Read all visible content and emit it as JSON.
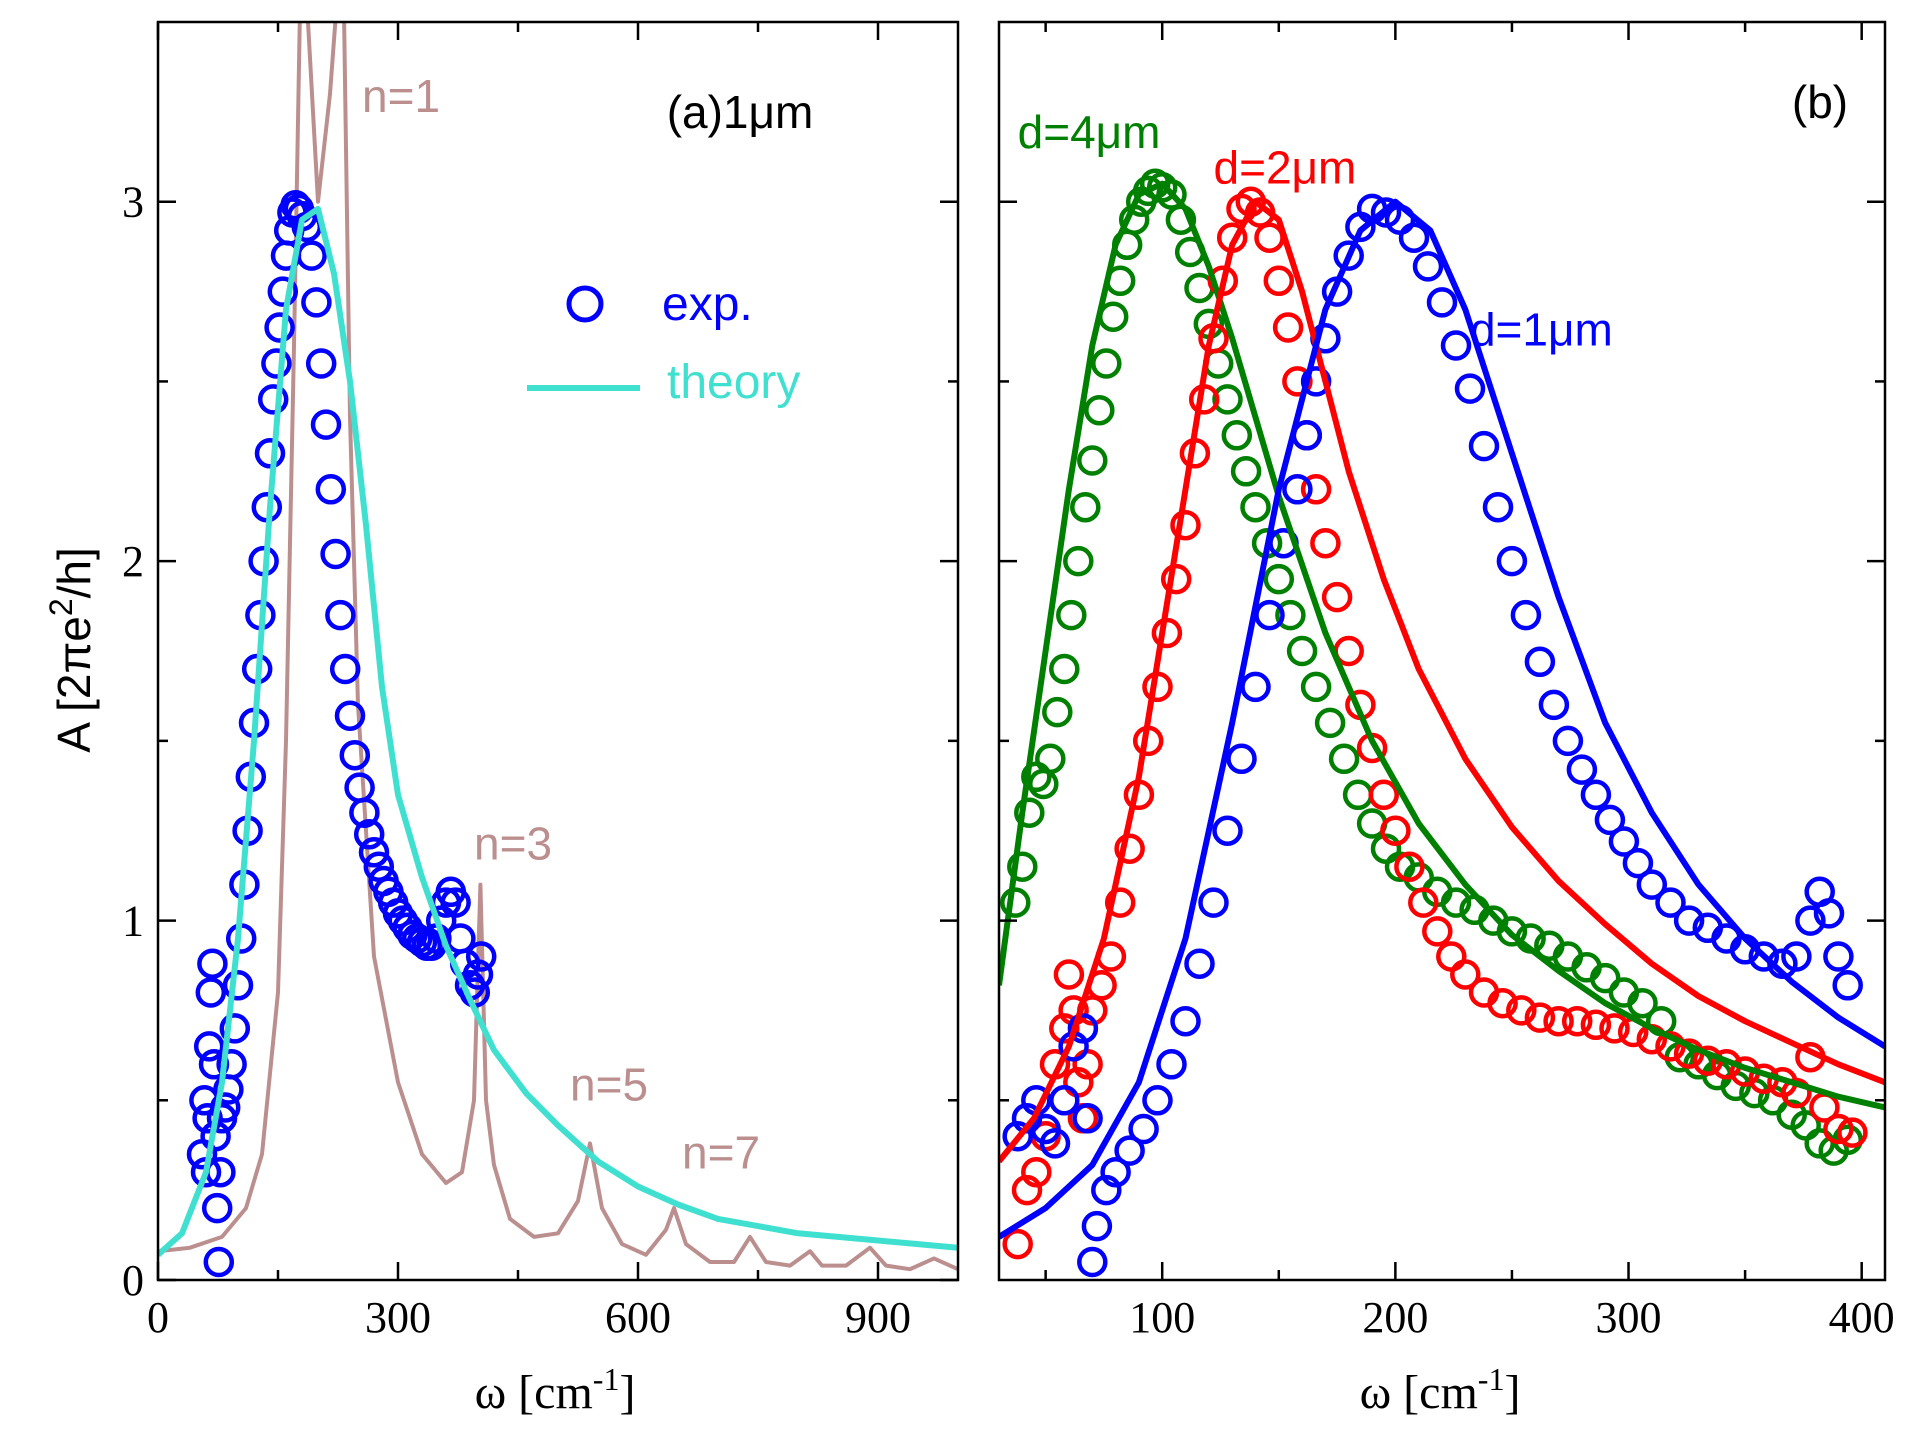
{
  "colors": {
    "exp": "#0000ff",
    "theory": "#40e0d0",
    "single_mode": "#bc8f8f",
    "d4": "#008000",
    "d2": "#ff0000",
    "d1": "#0000ff"
  },
  "chart_data": [
    {
      "id": "panel-a",
      "type": "line+scatter",
      "panel_label": "(a)1μm",
      "xlabel_symbol": "ω",
      "xlabel_unit": "[cm",
      "xlabel_sup": "-1",
      "xlabel_close": "]",
      "ylabel_main": "A [2πe",
      "ylabel_sup": "2",
      "ylabel_end": "/h]",
      "xlim": [
        0,
        1000
      ],
      "ylim": [
        0,
        3.5
      ],
      "xticks": [
        0,
        300,
        600,
        900
      ],
      "yticks": [
        0,
        1,
        2,
        3
      ],
      "xtick_labels": [
        "0",
        "300",
        "600",
        "900"
      ],
      "ytick_labels": [
        "0",
        "1",
        "2",
        "3"
      ],
      "legend": {
        "exp_label": "exp.",
        "theory_label": "theory",
        "position": "upper-right"
      },
      "mode_labels": [
        {
          "text": "n=1",
          "x": 255,
          "y": 3.25
        },
        {
          "text": "n=3",
          "x": 395,
          "y": 1.17
        },
        {
          "text": "n=5",
          "x": 515,
          "y": 0.5
        },
        {
          "text": "n=7",
          "x": 655,
          "y": 0.31
        }
      ],
      "series": [
        {
          "name": "single-mode",
          "style": "line",
          "x": [
            0,
            40,
            80,
            110,
            130,
            150,
            160,
            170,
            178,
            185,
            200,
            215,
            225,
            232,
            240,
            250,
            270,
            300,
            330,
            360,
            380,
            395,
            403,
            410,
            420,
            440,
            470,
            500,
            525,
            540,
            555,
            580,
            610,
            635,
            645,
            660,
            690,
            720,
            740,
            760,
            790,
            815,
            830,
            860,
            890,
            910,
            940,
            970,
            1000
          ],
          "y": [
            0.08,
            0.09,
            0.12,
            0.2,
            0.35,
            0.8,
            1.5,
            2.6,
            3.6,
            3.6,
            3.0,
            3.3,
            3.6,
            3.6,
            2.4,
            1.6,
            0.9,
            0.55,
            0.35,
            0.27,
            0.3,
            0.5,
            1.1,
            0.5,
            0.32,
            0.17,
            0.12,
            0.13,
            0.22,
            0.38,
            0.2,
            0.1,
            0.07,
            0.14,
            0.2,
            0.1,
            0.05,
            0.05,
            0.12,
            0.05,
            0.04,
            0.08,
            0.04,
            0.04,
            0.09,
            0.04,
            0.03,
            0.06,
            0.03
          ]
        },
        {
          "name": "theory",
          "style": "line",
          "x": [
            0,
            30,
            60,
            80,
            100,
            120,
            140,
            160,
            180,
            200,
            220,
            240,
            260,
            280,
            300,
            330,
            360,
            390,
            420,
            460,
            500,
            550,
            600,
            650,
            700,
            750,
            800,
            850,
            900,
            950,
            1000
          ],
          "y": [
            0.07,
            0.13,
            0.3,
            0.55,
            0.95,
            1.5,
            2.15,
            2.7,
            2.95,
            2.98,
            2.8,
            2.5,
            2.1,
            1.65,
            1.35,
            1.12,
            0.93,
            0.78,
            0.64,
            0.52,
            0.43,
            0.33,
            0.26,
            0.21,
            0.17,
            0.15,
            0.13,
            0.12,
            0.11,
            0.1,
            0.09
          ]
        },
        {
          "name": "exp.",
          "style": "markers",
          "x": [
            55,
            58,
            60,
            62,
            64,
            66,
            68,
            70,
            72,
            74,
            76,
            78,
            80,
            84,
            88,
            92,
            96,
            100,
            104,
            108,
            112,
            116,
            120,
            124,
            128,
            132,
            136,
            140,
            144,
            148,
            152,
            156,
            160,
            164,
            168,
            172,
            176,
            180,
            186,
            192,
            198,
            204,
            210,
            216,
            222,
            228,
            234,
            240,
            246,
            252,
            258,
            264,
            270,
            276,
            282,
            288,
            294,
            300,
            306,
            312,
            318,
            324,
            330,
            336,
            342,
            348,
            354,
            360,
            366,
            372,
            378,
            384,
            390,
            396,
            400,
            404
          ],
          "y": [
            0.35,
            0.5,
            0.3,
            0.45,
            0.65,
            0.8,
            0.88,
            0.6,
            0.4,
            0.2,
            0.05,
            0.3,
            0.45,
            0.48,
            0.53,
            0.6,
            0.7,
            0.82,
            0.95,
            1.1,
            1.25,
            1.4,
            1.55,
            1.7,
            1.85,
            2.0,
            2.15,
            2.3,
            2.45,
            2.55,
            2.65,
            2.75,
            2.85,
            2.92,
            2.97,
            2.99,
            2.98,
            2.96,
            2.93,
            2.85,
            2.72,
            2.55,
            2.38,
            2.2,
            2.02,
            1.85,
            1.7,
            1.57,
            1.46,
            1.37,
            1.3,
            1.24,
            1.19,
            1.15,
            1.11,
            1.08,
            1.05,
            1.02,
            1.0,
            0.98,
            0.96,
            0.95,
            0.94,
            0.93,
            0.93,
            0.95,
            1.0,
            1.05,
            1.08,
            1.05,
            0.95,
            0.88,
            0.82,
            0.8,
            0.85,
            0.9
          ]
        }
      ]
    },
    {
      "id": "panel-b",
      "type": "line+scatter",
      "panel_label": "(b)",
      "xlabel_symbol": "ω",
      "xlabel_unit": "[cm",
      "xlabel_sup": "-1",
      "xlabel_close": "]",
      "xlim": [
        30,
        410
      ],
      "ylim": [
        0,
        3.5
      ],
      "xticks": [
        100,
        200,
        300,
        400
      ],
      "xtick_labels": [
        "100",
        "200",
        "300",
        "400"
      ],
      "series": [
        {
          "name": "d=4μm",
          "label_text": "d=4μm",
          "label_x": 38,
          "label_y": 3.15,
          "color_key": "d4",
          "line_x": [
            30,
            40,
            50,
            60,
            70,
            80,
            90,
            100,
            110,
            120,
            130,
            140,
            150,
            170,
            190,
            210,
            230,
            250,
            270,
            290,
            310,
            330,
            350,
            370,
            390,
            410
          ],
          "line_y": [
            0.82,
            1.3,
            1.75,
            2.2,
            2.6,
            2.88,
            3.02,
            3.05,
            2.98,
            2.82,
            2.62,
            2.4,
            2.18,
            1.8,
            1.5,
            1.27,
            1.1,
            0.96,
            0.86,
            0.77,
            0.7,
            0.64,
            0.59,
            0.55,
            0.51,
            0.48
          ],
          "marker_x": [
            37,
            40,
            43,
            46,
            49,
            52,
            55,
            58,
            61,
            64,
            67,
            70,
            73,
            76,
            79,
            82,
            85,
            88,
            91,
            94,
            97,
            100,
            104,
            108,
            112,
            116,
            120,
            124,
            128,
            132,
            136,
            140,
            145,
            150,
            155,
            160,
            166,
            172,
            178,
            184,
            190,
            196,
            202,
            210,
            218,
            226,
            234,
            242,
            250,
            258,
            266,
            274,
            282,
            290,
            298,
            306,
            314,
            322,
            330,
            338,
            346,
            354,
            362,
            370,
            376,
            382,
            388,
            394
          ],
          "marker_y": [
            1.05,
            1.15,
            1.3,
            1.4,
            1.38,
            1.45,
            1.58,
            1.7,
            1.85,
            2.0,
            2.15,
            2.28,
            2.42,
            2.55,
            2.68,
            2.78,
            2.88,
            2.95,
            3.0,
            3.03,
            3.05,
            3.04,
            3.02,
            2.95,
            2.86,
            2.76,
            2.66,
            2.55,
            2.45,
            2.35,
            2.25,
            2.15,
            2.05,
            1.95,
            1.85,
            1.75,
            1.65,
            1.55,
            1.45,
            1.35,
            1.27,
            1.2,
            1.15,
            1.12,
            1.08,
            1.05,
            1.03,
            1.0,
            0.97,
            0.95,
            0.93,
            0.9,
            0.87,
            0.84,
            0.8,
            0.77,
            0.72,
            0.62,
            0.6,
            0.57,
            0.54,
            0.52,
            0.5,
            0.46,
            0.43,
            0.38,
            0.36,
            0.39
          ]
        },
        {
          "name": "d=2μm",
          "label_text": "d=2μm",
          "label_x": 122,
          "label_y": 3.05,
          "color_key": "d2",
          "line_x": [
            30,
            45,
            60,
            75,
            90,
            100,
            110,
            120,
            130,
            140,
            150,
            160,
            170,
            180,
            195,
            210,
            230,
            250,
            270,
            290,
            310,
            330,
            350,
            370,
            390,
            410
          ],
          "line_y": [
            0.33,
            0.45,
            0.65,
            0.95,
            1.4,
            1.8,
            2.2,
            2.6,
            2.88,
            3.0,
            2.95,
            2.75,
            2.5,
            2.25,
            1.95,
            1.7,
            1.45,
            1.26,
            1.11,
            0.99,
            0.88,
            0.79,
            0.72,
            0.66,
            0.6,
            0.55
          ],
          "marker_x": [
            38,
            42,
            46,
            50,
            54,
            58,
            60,
            62,
            64,
            66,
            68,
            70,
            74,
            78,
            82,
            86,
            90,
            94,
            98,
            102,
            106,
            110,
            114,
            118,
            122,
            126,
            130,
            134,
            138,
            142,
            146,
            150,
            154,
            158,
            162,
            166,
            170,
            175,
            180,
            185,
            190,
            195,
            200,
            206,
            212,
            218,
            224,
            230,
            238,
            246,
            254,
            262,
            270,
            278,
            286,
            294,
            302,
            310,
            318,
            326,
            334,
            342,
            350,
            358,
            366,
            372,
            378,
            384,
            390,
            396
          ],
          "marker_y": [
            0.1,
            0.25,
            0.3,
            0.4,
            0.6,
            0.7,
            0.85,
            0.75,
            0.55,
            0.45,
            0.6,
            0.75,
            0.82,
            0.9,
            1.05,
            1.2,
            1.35,
            1.5,
            1.65,
            1.8,
            1.95,
            2.1,
            2.3,
            2.45,
            2.62,
            2.78,
            2.9,
            2.98,
            3.0,
            2.97,
            2.9,
            2.78,
            2.65,
            2.5,
            2.35,
            2.2,
            2.05,
            1.9,
            1.75,
            1.6,
            1.48,
            1.35,
            1.25,
            1.15,
            1.05,
            0.97,
            0.9,
            0.85,
            0.8,
            0.77,
            0.75,
            0.73,
            0.72,
            0.72,
            0.71,
            0.7,
            0.69,
            0.67,
            0.65,
            0.63,
            0.61,
            0.6,
            0.58,
            0.56,
            0.55,
            0.52,
            0.62,
            0.48,
            0.42,
            0.41
          ]
        },
        {
          "name": "d=1μm",
          "label_text": "d=1μm",
          "label_x": 232,
          "label_y": 2.6,
          "color_key": "d1",
          "line_x": [
            30,
            50,
            70,
            90,
            110,
            130,
            150,
            170,
            185,
            200,
            215,
            230,
            250,
            270,
            290,
            310,
            330,
            350,
            370,
            390,
            410
          ],
          "line_y": [
            0.12,
            0.2,
            0.32,
            0.55,
            0.95,
            1.55,
            2.2,
            2.7,
            2.92,
            3.0,
            2.92,
            2.7,
            2.3,
            1.9,
            1.55,
            1.3,
            1.1,
            0.95,
            0.83,
            0.73,
            0.65
          ],
          "marker_x": [
            38,
            42,
            46,
            50,
            54,
            58,
            62,
            66,
            68,
            70,
            72,
            76,
            80,
            86,
            92,
            98,
            104,
            110,
            116,
            122,
            128,
            134,
            140,
            146,
            152,
            158,
            162,
            166,
            170,
            175,
            180,
            185,
            190,
            196,
            202,
            208,
            214,
            220,
            226,
            232,
            238,
            244,
            250,
            256,
            262,
            268,
            274,
            280,
            286,
            292,
            298,
            304,
            310,
            318,
            326,
            334,
            342,
            350,
            358,
            366,
            372,
            378,
            382,
            386,
            390,
            394
          ],
          "marker_y": [
            0.4,
            0.45,
            0.5,
            0.42,
            0.38,
            0.5,
            0.65,
            0.7,
            0.45,
            0.05,
            0.15,
            0.25,
            0.3,
            0.36,
            0.42,
            0.5,
            0.6,
            0.72,
            0.88,
            1.05,
            1.25,
            1.45,
            1.65,
            1.85,
            2.05,
            2.2,
            2.35,
            2.5,
            2.62,
            2.75,
            2.85,
            2.93,
            2.98,
            2.97,
            2.95,
            2.9,
            2.82,
            2.72,
            2.6,
            2.48,
            2.32,
            2.15,
            2.0,
            1.85,
            1.72,
            1.6,
            1.5,
            1.42,
            1.35,
            1.28,
            1.22,
            1.16,
            1.1,
            1.05,
            1.0,
            0.98,
            0.95,
            0.92,
            0.9,
            0.88,
            0.9,
            1.0,
            1.08,
            1.02,
            0.9,
            0.82
          ]
        }
      ]
    }
  ]
}
